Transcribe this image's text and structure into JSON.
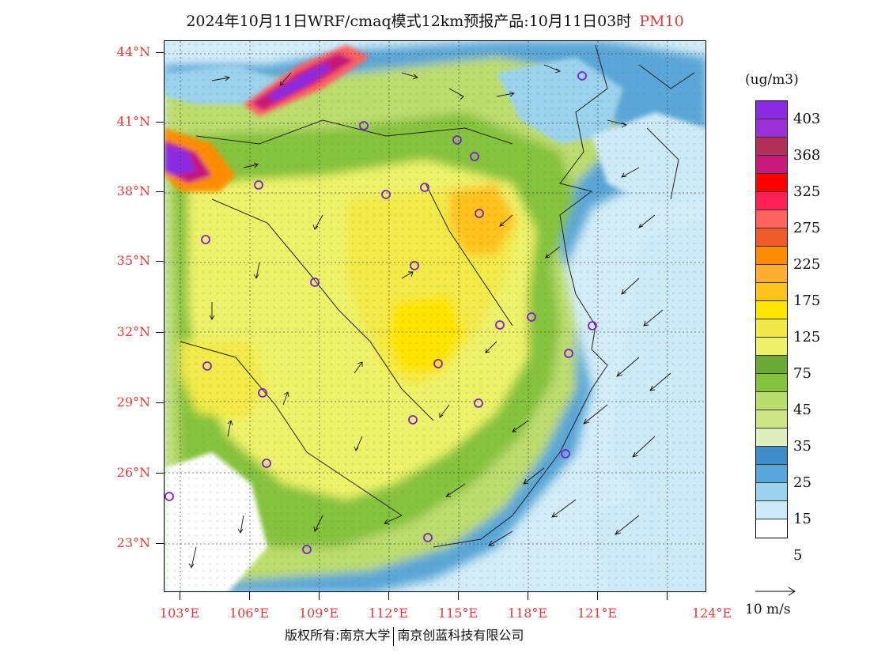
{
  "title": {
    "main": "2024年10月11日WRF/cmaq模式12km预报产品:10月11日03时",
    "pollutant": "PM10"
  },
  "lat_labels": [
    "44°N",
    "41°N",
    "38°N",
    "35°N",
    "32°N",
    "29°N",
    "26°N",
    "23°N"
  ],
  "lon_labels": [
    "103°E",
    "106°E",
    "109°E",
    "112°E",
    "115°E",
    "118°E",
    "121°E",
    "124°E"
  ],
  "colorbar": {
    "unit": "(ug/m3)",
    "colors": [
      "#8a2be2",
      "#9b30d6",
      "#b0305a",
      "#c8197a",
      "#ff0000",
      "#ff1f55",
      "#ff6060",
      "#ee5a28",
      "#ff8c00",
      "#ffad33",
      "#ffc21a",
      "#ffe400",
      "#f2ea4a",
      "#eef26a",
      "#6ea836",
      "#85c23e",
      "#bddc6e",
      "#cfe488",
      "#e1efc0",
      "#3f8cc8",
      "#5aa6d8",
      "#9bd2ee",
      "#cfeaf7",
      "#ffffff"
    ],
    "labels": [
      "403",
      "368",
      "325",
      "275",
      "225",
      "175",
      "125",
      "75",
      "45",
      "35",
      "25",
      "15",
      "5"
    ]
  },
  "vector_label": "10 m/s",
  "footer": {
    "left": "版权所有:南京大学",
    "right": "南京创蓝科技有限公司"
  }
}
